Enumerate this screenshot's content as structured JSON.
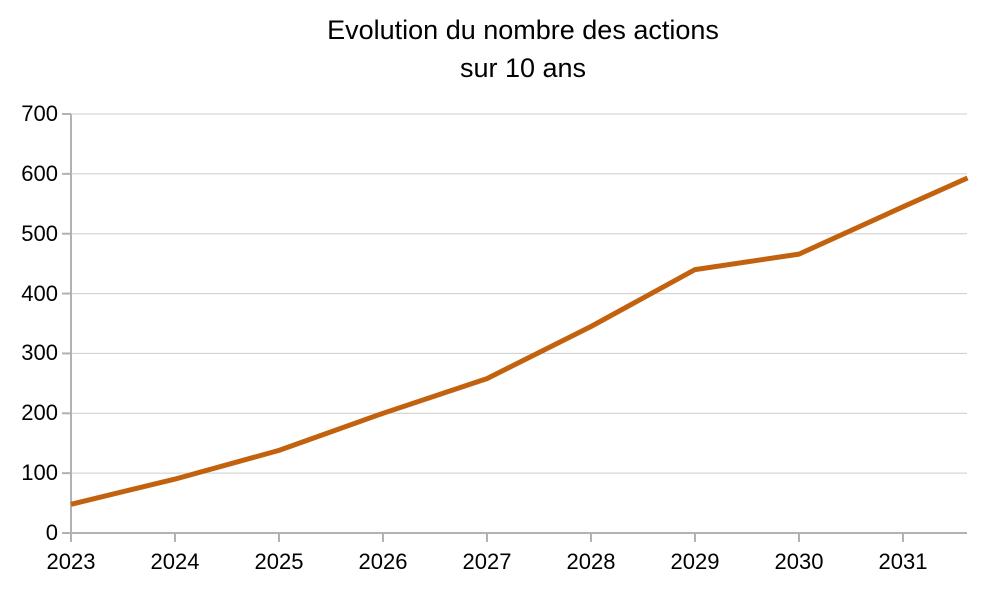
{
  "title": {
    "line1": "Evolution du nombre des actions",
    "line2": "sur 10 ans"
  },
  "chart_data": {
    "type": "line",
    "title": "Evolution du nombre des actions sur 10 ans",
    "xlabel": "",
    "ylabel": "",
    "x_axis": {
      "tick_labels": [
        "2023",
        "2024",
        "2025",
        "2026",
        "2027",
        "2028",
        "2029",
        "2030",
        "2031"
      ],
      "start_year": 2023,
      "note": "line continues past the 2031 tick and is clipped by the right edge of the plot area"
    },
    "y_axis": {
      "ticks": [
        0,
        100,
        200,
        300,
        400,
        500,
        600,
        700
      ],
      "min": 0,
      "max": 700
    },
    "series": [
      {
        "name": "nombre des actions",
        "x": [
          2023,
          2024,
          2025,
          2026,
          2027,
          2028,
          2029,
          2030,
          2031,
          2031.62
        ],
        "values": [
          48,
          90,
          138,
          200,
          258,
          345,
          440,
          466,
          545,
          593
        ],
        "last_point_note": "x=2031.62 / value 593 is the visible clipped end of the line at the plot edge"
      }
    ],
    "grid": "horizontal gridlines only",
    "legend": "none",
    "colors": {
      "line": "#C2620E",
      "gridline": "#CCCCCC",
      "axis": "#B2B2B2",
      "text": "#000000",
      "background": "#FFFFFF"
    }
  }
}
